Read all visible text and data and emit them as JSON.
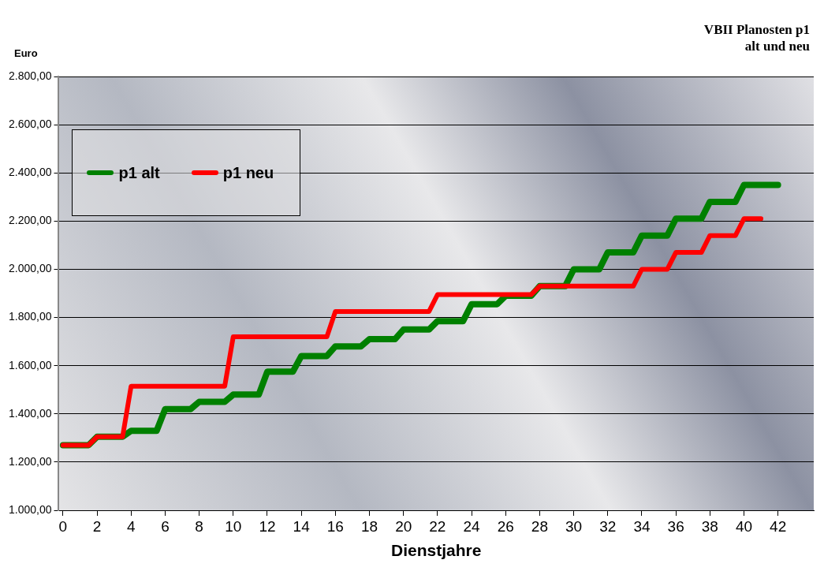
{
  "chart_data": {
    "type": "line",
    "title": "VBII Planosten p1",
    "subtitle": "alt und neu",
    "xlabel": "Dienstjahre",
    "ylabel": "Euro",
    "xlim": [
      -0.25,
      44.1
    ],
    "xticks": [
      0,
      2,
      4,
      6,
      8,
      10,
      12,
      14,
      16,
      18,
      20,
      22,
      24,
      26,
      28,
      30,
      32,
      34,
      36,
      38,
      40,
      42
    ],
    "ylim": [
      1000,
      2800
    ],
    "yticks": [
      {
        "value": 1000,
        "label": "1.000,00"
      },
      {
        "value": 1200,
        "label": "1.200,00"
      },
      {
        "value": 1400,
        "label": "1.400,00"
      },
      {
        "value": 1600,
        "label": "1.600,00"
      },
      {
        "value": 1800,
        "label": "1.800,00"
      },
      {
        "value": 2000,
        "label": "2.000,00"
      },
      {
        "value": 2200,
        "label": "2.200,00"
      },
      {
        "value": 2400,
        "label": "2.400,00"
      },
      {
        "value": 2600,
        "label": "2.600,00"
      },
      {
        "value": 2800,
        "label": "2.800,00"
      }
    ],
    "grid": "y",
    "legend": "top left",
    "marker": "none",
    "line_style": "solid",
    "series": [
      {
        "name": "p1 alt",
        "color": "#008000",
        "x": [
          0,
          1.5,
          2,
          3.5,
          4,
          5.5,
          6,
          7.5,
          8,
          9.5,
          10,
          11.5,
          12,
          13.5,
          14,
          15.5,
          16,
          17.5,
          18,
          19.5,
          20,
          21.5,
          22,
          23.5,
          24,
          25.5,
          26,
          27.5,
          28,
          29.5,
          30,
          31.5,
          32,
          33.5,
          34,
          35.5,
          36,
          37.5,
          38,
          39.5,
          40,
          42
        ],
        "values": [
          1270,
          1270,
          1305,
          1305,
          1330,
          1330,
          1420,
          1420,
          1450,
          1450,
          1480,
          1480,
          1575,
          1575,
          1640,
          1640,
          1680,
          1680,
          1710,
          1710,
          1750,
          1750,
          1785,
          1785,
          1855,
          1855,
          1890,
          1890,
          1930,
          1930,
          2000,
          2000,
          2070,
          2070,
          2140,
          2140,
          2210,
          2210,
          2280,
          2280,
          2350,
          2350
        ]
      },
      {
        "name": "p1 neu",
        "color": "#ff0000",
        "x": [
          0,
          1.5,
          2,
          3.5,
          4,
          5.5,
          6,
          7.5,
          8,
          9.5,
          10,
          11.5,
          12,
          13.5,
          14,
          15.5,
          16,
          17.5,
          18,
          19.5,
          20,
          21.5,
          22,
          23.5,
          24,
          25.5,
          26,
          27.5,
          28,
          29.5,
          30,
          31.5,
          32,
          33.5,
          34,
          35.5,
          36,
          37.5,
          38,
          39.5,
          40,
          41
        ],
        "values": [
          1270,
          1270,
          1305,
          1305,
          1515,
          1515,
          1515,
          1515,
          1515,
          1515,
          1720,
          1720,
          1720,
          1720,
          1720,
          1720,
          1825,
          1825,
          1825,
          1825,
          1825,
          1825,
          1895,
          1895,
          1895,
          1895,
          1895,
          1895,
          1930,
          1930,
          1930,
          1930,
          1930,
          1930,
          2000,
          2000,
          2070,
          2070,
          2140,
          2140,
          2210,
          2210
        ]
      }
    ]
  }
}
